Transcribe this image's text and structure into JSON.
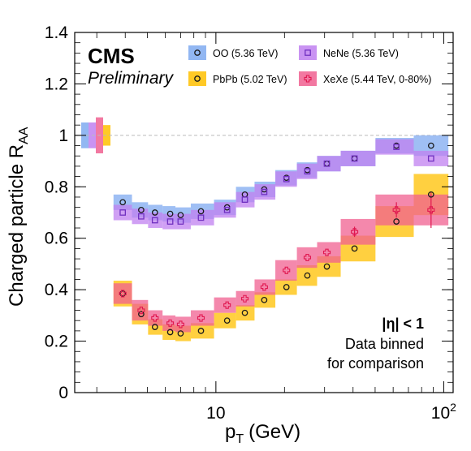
{
  "chart_data": {
    "type": "scatter",
    "experiment_label": "CMS",
    "status_label": "Preliminary",
    "xlabel_main": "p",
    "xlabel_sub": "T",
    "xlabel_unit": "(GeV)",
    "ylabel_main": "Charged particle R",
    "ylabel_sub": "AA",
    "x_scale": "log",
    "xlim": [
      2.4,
      110
    ],
    "ylim": [
      0,
      1.4
    ],
    "y_ticks": [
      "0",
      "0.2",
      "0.4",
      "0.6",
      "0.8",
      "1",
      "1.2",
      "1.4"
    ],
    "x_tick_labels": [
      {
        "value": 10,
        "base": "10",
        "exp": ""
      },
      {
        "value": 100,
        "base": "10",
        "exp": "2"
      }
    ],
    "reference_line_y": 1,
    "annotations": [
      "|η| < 1",
      "Data binned",
      "for comparison"
    ],
    "series": [
      {
        "name": "OO (5.36 TeV)",
        "marker": "circle",
        "marker_color": "#1a1a1a",
        "band_color": "#7faaf0",
        "norm_band": {
          "y": 1,
          "half": 0.05,
          "x_index": 0
        },
        "x": [
          3.9,
          4.7,
          5.4,
          6.3,
          7.0,
          8.6,
          11.2,
          13.4,
          16.3,
          20.4,
          25.2,
          30.7,
          40.6,
          62.0,
          88.0
        ],
        "y": [
          0.74,
          0.71,
          0.7,
          0.695,
          0.69,
          0.705,
          0.72,
          0.77,
          0.79,
          0.835,
          0.865,
          0.89,
          0.91,
          0.96,
          0.96
        ],
        "unc": [
          0.03,
          0.03,
          0.03,
          0.03,
          0.03,
          0.03,
          0.03,
          0.03,
          0.03,
          0.03,
          0.03,
          0.03,
          0.03,
          0.03,
          0.04
        ]
      },
      {
        "name": "NeNe (5.36 TeV)",
        "marker": "square",
        "marker_color": "#7030c0",
        "band_color": "#c080f0",
        "norm_band": {
          "y": 1,
          "half": 0.05,
          "x_index": 1
        },
        "x": [
          3.9,
          4.7,
          5.4,
          6.3,
          7.0,
          8.6,
          11.2,
          13.4,
          16.3,
          20.4,
          25.2,
          30.7,
          40.6,
          62.0,
          88.0
        ],
        "y": [
          0.7,
          0.685,
          0.67,
          0.665,
          0.665,
          0.68,
          0.71,
          0.75,
          0.78,
          0.83,
          0.86,
          0.89,
          0.91,
          0.955,
          0.91
        ],
        "unc": [
          0.03,
          0.03,
          0.03,
          0.03,
          0.03,
          0.03,
          0.03,
          0.03,
          0.03,
          0.03,
          0.03,
          0.03,
          0.03,
          0.03,
          0.03
        ]
      },
      {
        "name": "PbPb (5.02 TeV)",
        "marker": "circle",
        "marker_color": "#1a1a1a",
        "band_color": "#ffc000",
        "norm_band": {
          "y": 1,
          "half": 0.04,
          "x_index": 3
        },
        "x": [
          3.9,
          4.7,
          5.4,
          6.3,
          7.0,
          8.6,
          11.2,
          13.4,
          16.3,
          20.4,
          25.2,
          30.7,
          40.6,
          62.0,
          88.0
        ],
        "y": [
          0.385,
          0.305,
          0.255,
          0.235,
          0.23,
          0.24,
          0.28,
          0.31,
          0.36,
          0.41,
          0.455,
          0.49,
          0.56,
          0.665,
          0.77
        ],
        "unc": [
          0.05,
          0.04,
          0.03,
          0.03,
          0.03,
          0.03,
          0.03,
          0.03,
          0.03,
          0.03,
          0.04,
          0.04,
          0.05,
          0.06,
          0.08
        ]
      },
      {
        "name": "XeXe (5.44 TeV, 0-80%)",
        "marker": "cross",
        "marker_color": "#e01850",
        "band_color": "#f06090",
        "norm_band": {
          "y": 1,
          "half": 0.07,
          "x_index": 2
        },
        "x": [
          3.9,
          4.7,
          5.4,
          6.3,
          7.0,
          8.6,
          11.2,
          13.4,
          16.3,
          20.4,
          25.2,
          30.7,
          40.6,
          62.0,
          88.0
        ],
        "y": [
          0.385,
          0.32,
          0.29,
          0.27,
          0.265,
          0.29,
          0.34,
          0.365,
          0.41,
          0.475,
          0.525,
          0.545,
          0.625,
          0.71,
          0.71
        ],
        "unc": [
          0.04,
          0.04,
          0.03,
          0.03,
          0.03,
          0.03,
          0.03,
          0.03,
          0.03,
          0.04,
          0.04,
          0.04,
          0.05,
          0.06,
          0.06
        ],
        "stat_err": [
          0,
          0,
          0,
          0,
          0,
          0,
          0,
          0,
          0,
          0,
          0,
          0,
          0.02,
          0.03,
          0.07
        ]
      }
    ],
    "legend_order": [
      0,
      1,
      2,
      3
    ],
    "legend_placement": "top-right"
  }
}
